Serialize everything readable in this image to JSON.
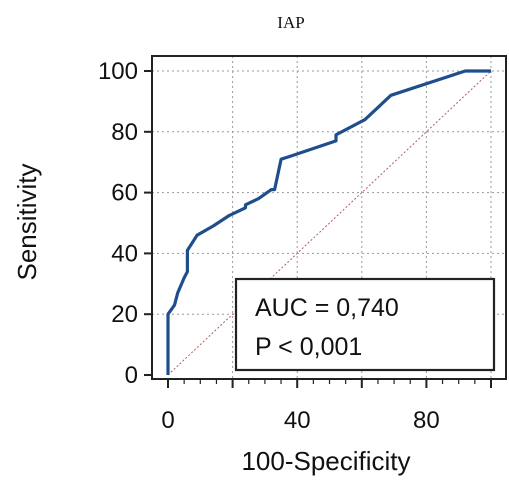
{
  "chart_data": {
    "type": "line",
    "title": "IAP",
    "xlabel": "100-Specificity",
    "ylabel": "Sensitivity",
    "xlim": [
      0,
      100
    ],
    "ylim": [
      0,
      100
    ],
    "x_ticks": [
      0,
      40,
      80
    ],
    "x_minor_ticks": [
      20,
      60,
      100
    ],
    "y_ticks": [
      0,
      20,
      40,
      60,
      80,
      100
    ],
    "grid": true,
    "series": [
      {
        "name": "",
        "color": "#1f4e8c",
        "points": [
          [
            0,
            0
          ],
          [
            0,
            20
          ],
          [
            2,
            23
          ],
          [
            3,
            27
          ],
          [
            5,
            32
          ],
          [
            6,
            34
          ],
          [
            6,
            41
          ],
          [
            9,
            46
          ],
          [
            14,
            49
          ],
          [
            19,
            52.5
          ],
          [
            24,
            55
          ],
          [
            24,
            56
          ],
          [
            28,
            58
          ],
          [
            32,
            61
          ],
          [
            33,
            61
          ],
          [
            35,
            71
          ],
          [
            38,
            72
          ],
          [
            52,
            77
          ],
          [
            52,
            79
          ],
          [
            61,
            84
          ],
          [
            69,
            92
          ],
          [
            92,
            100
          ],
          [
            100,
            100
          ]
        ]
      },
      {
        "name": "",
        "color": "#b06060",
        "dashed": true,
        "points": [
          [
            0,
            0
          ],
          [
            100,
            100
          ]
        ]
      }
    ],
    "annotations": [
      "AUC = 0,740",
      "P < 0,001"
    ]
  }
}
